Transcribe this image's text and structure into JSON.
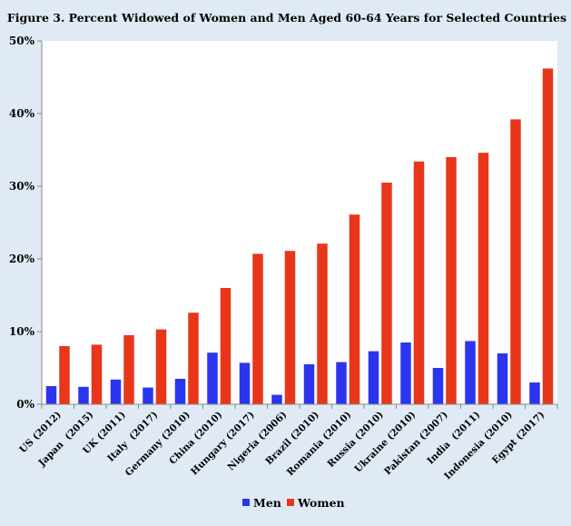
{
  "chart_data": {
    "type": "bar",
    "title": "Figure 3. Percent Widowed of Women and Men Aged 60-64 Years for Selected Countries",
    "categories": [
      "US (2012)",
      "Japan  (2015)",
      "UK (2011)",
      "Italy  (2017)",
      "Germany (2010)",
      "China (2010)",
      "Hungary (2017)",
      "Nigeria (2006)",
      "Brazil (2010)",
      "Romania (2010)",
      "Russia (2010)",
      "Ukraine (2010)",
      "Pakistan (2007)",
      "India  (2011)",
      "Indonesia (2010)",
      "Egypt (2017)"
    ],
    "series": [
      {
        "name": "Men",
        "color": "#2b35f0",
        "values": [
          2.5,
          2.4,
          3.4,
          2.3,
          3.5,
          7.1,
          5.7,
          1.3,
          5.5,
          5.8,
          7.3,
          8.5,
          5.0,
          8.7,
          7.0,
          3.0
        ]
      },
      {
        "name": "Women",
        "color": "#e8361a",
        "values": [
          8.0,
          8.2,
          9.5,
          10.3,
          12.6,
          16.0,
          20.7,
          21.1,
          22.1,
          26.1,
          30.5,
          33.4,
          34.0,
          34.6,
          39.2,
          46.2
        ]
      }
    ],
    "ylim": [
      0,
      50
    ],
    "yticks": [
      "0%",
      "10%",
      "20%",
      "30%",
      "40%",
      "50%"
    ],
    "ytick_values": [
      0,
      10,
      20,
      30,
      40,
      50
    ],
    "grid": false,
    "legend_position": "bottom-center",
    "xlabel": "",
    "ylabel": ""
  }
}
